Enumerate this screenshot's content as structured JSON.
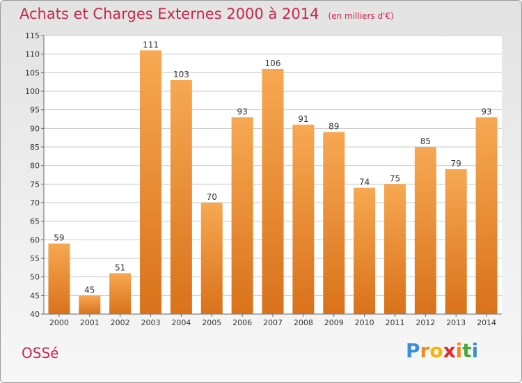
{
  "header": {
    "title": "Achats et Charges Externes 2000 à 2014",
    "subtitle": "(en milliers d'€)"
  },
  "footer": {
    "commune": "OSSé",
    "logo_letters": [
      "P",
      "r",
      "o",
      "x",
      "i",
      "t",
      "i"
    ],
    "logo_colors": [
      "#3a8fd6",
      "#f28a1e",
      "#f7b500",
      "#e8262b",
      "#f28a1e",
      "#4aa83c",
      "#3a8fd6"
    ]
  },
  "colors": {
    "bar_top": "#f7a852",
    "bar_bottom": "#d9721b",
    "grid": "#c8c8c8",
    "axis_text": "#333333",
    "accent": "#c8284a"
  },
  "chart_data": {
    "type": "bar",
    "categories": [
      "2000",
      "2001",
      "2002",
      "2003",
      "2004",
      "2005",
      "2006",
      "2007",
      "2008",
      "2009",
      "2010",
      "2011",
      "2012",
      "2013",
      "2014"
    ],
    "values": [
      59,
      45,
      51,
      111,
      103,
      70,
      93,
      106,
      91,
      89,
      74,
      75,
      85,
      79,
      93
    ],
    "ylim": [
      40,
      115
    ],
    "yticks": [
      40,
      45,
      50,
      55,
      60,
      65,
      70,
      75,
      80,
      85,
      90,
      95,
      100,
      105,
      110,
      115
    ],
    "grid": true,
    "legend": "none"
  }
}
